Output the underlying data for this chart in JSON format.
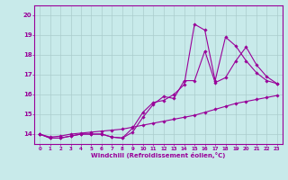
{
  "xlabel": "Windchill (Refroidissement éolien,°C)",
  "line_color": "#990099",
  "bg_color": "#c8eaea",
  "grid_color": "#aacccc",
  "xlim": [
    -0.5,
    23.5
  ],
  "ylim": [
    13.5,
    20.5
  ],
  "xticks": [
    0,
    1,
    2,
    3,
    4,
    5,
    6,
    7,
    8,
    9,
    10,
    11,
    12,
    13,
    14,
    15,
    16,
    17,
    18,
    19,
    20,
    21,
    22,
    23
  ],
  "yticks": [
    14,
    15,
    16,
    17,
    18,
    19,
    20
  ],
  "series1_x": [
    0,
    1,
    2,
    3,
    4,
    5,
    6,
    7,
    8,
    9,
    10,
    11,
    12,
    13,
    14,
    15,
    16,
    17,
    18,
    19,
    20,
    21,
    22,
    23
  ],
  "series1_y": [
    14.0,
    13.8,
    13.8,
    13.9,
    14.0,
    14.0,
    14.0,
    13.85,
    13.8,
    14.1,
    14.85,
    15.5,
    15.9,
    15.8,
    16.7,
    16.7,
    18.2,
    16.6,
    16.85,
    17.7,
    18.4,
    17.5,
    16.9,
    16.55
  ],
  "series2_x": [
    0,
    1,
    2,
    3,
    4,
    5,
    6,
    7,
    8,
    9,
    10,
    11,
    12,
    13,
    14,
    15,
    16,
    17,
    18,
    19,
    20,
    21,
    22,
    23
  ],
  "series2_y": [
    14.0,
    13.8,
    13.8,
    13.9,
    14.0,
    14.0,
    14.0,
    13.85,
    13.8,
    14.3,
    15.1,
    15.6,
    15.7,
    16.0,
    16.5,
    19.55,
    19.25,
    16.7,
    18.9,
    18.45,
    17.7,
    17.1,
    16.7,
    16.55
  ],
  "series3_x": [
    0,
    1,
    2,
    3,
    4,
    5,
    6,
    7,
    8,
    9,
    10,
    11,
    12,
    13,
    14,
    15,
    16,
    17,
    18,
    19,
    20,
    21,
    22,
    23
  ],
  "series3_y": [
    14.0,
    13.85,
    13.9,
    14.0,
    14.05,
    14.1,
    14.15,
    14.2,
    14.25,
    14.35,
    14.45,
    14.55,
    14.65,
    14.75,
    14.85,
    14.95,
    15.1,
    15.25,
    15.4,
    15.55,
    15.65,
    15.75,
    15.85,
    15.95
  ]
}
